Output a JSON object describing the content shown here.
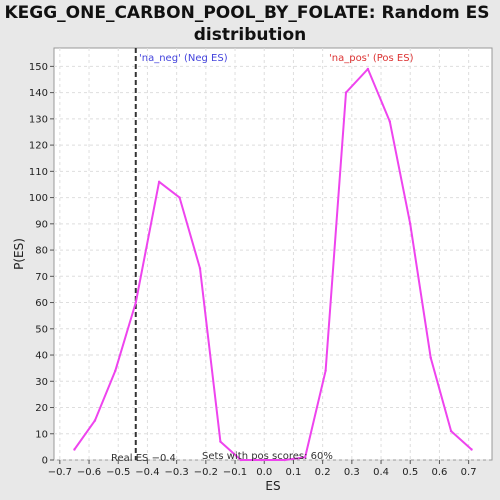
{
  "chart_data": {
    "type": "line",
    "title_lines": [
      "KEGG_ONE_CARBON_POOL_BY_FOLATE: Random ES",
      "distribution"
    ],
    "xlabel": "ES",
    "ylabel": "P(ES)",
    "xlim": [
      -0.72,
      0.78
    ],
    "ylim": [
      0,
      157
    ],
    "x_ticks": [
      -0.7,
      -0.6,
      -0.5,
      -0.4,
      -0.3,
      -0.2,
      -0.1,
      0.0,
      0.1,
      0.2,
      0.3,
      0.4,
      0.5,
      0.6,
      0.7
    ],
    "x_tick_labels": [
      "−0.7",
      "−0.6",
      "−0.5",
      "−0.4",
      "−0.3",
      "−0.2",
      "−0.1",
      "0.0",
      "0.1",
      "0.2",
      "0.3",
      "0.4",
      "0.5",
      "0.6",
      "0.7"
    ],
    "y_ticks": [
      0,
      10,
      20,
      30,
      40,
      50,
      60,
      70,
      80,
      90,
      100,
      110,
      120,
      130,
      140,
      150
    ],
    "y_tick_labels": [
      "0",
      "10",
      "20",
      "30",
      "40",
      "50",
      "60",
      "70",
      "80",
      "90",
      "100",
      "110",
      "120",
      "130",
      "140",
      "150"
    ],
    "grid": true,
    "series": [
      {
        "name": "Random ES distribution",
        "color": "#ee44ee",
        "x": [
          -0.65,
          -0.58,
          -0.51,
          -0.44,
          -0.36,
          -0.29,
          -0.22,
          -0.15,
          -0.08,
          -0.01,
          0.07,
          0.14,
          0.21,
          0.28,
          0.355,
          0.43,
          0.5,
          0.57,
          0.64,
          0.71
        ],
        "y": [
          4,
          15,
          34,
          60,
          106,
          100,
          73,
          7,
          0,
          0,
          0,
          1,
          34,
          140,
          149,
          129,
          90,
          39,
          11,
          4
        ]
      }
    ],
    "real_es": {
      "value": -0.44,
      "label": "Real ES −0.4",
      "color": "#333333"
    },
    "annotations": {
      "neg_label": "'na_neg' (Neg ES)",
      "neg_color": "#4444dd",
      "pos_label": "'na_pos' (Pos ES)",
      "pos_color": "#dd3333",
      "sets_label": "Sets with pos scores: 60%"
    }
  }
}
